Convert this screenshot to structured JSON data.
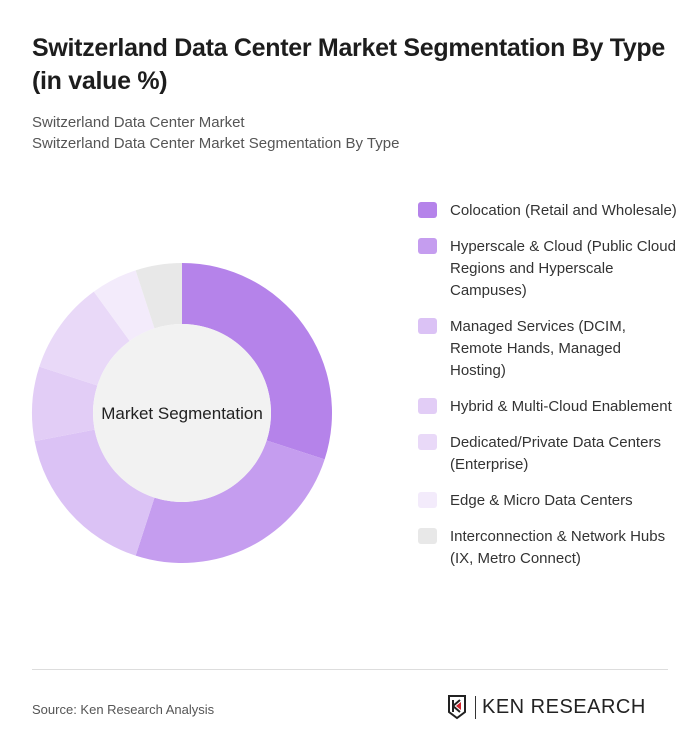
{
  "title": "Switzerland Data Center Market Segmentation By Type (in value %)",
  "subtitle1": "Switzerland Data Center Market",
  "subtitle2": "Switzerland Data Center Market Segmentation By Type",
  "source": "Source: Ken Research Analysis",
  "logo_text": "KEN RESEARCH",
  "chart_data": {
    "type": "pie",
    "variant": "donut",
    "center_label": "Market Segmentation",
    "legend_position": "right",
    "unit": "%",
    "categories": [
      "Colocation (Retail and Wholesale)",
      "Hyperscale & Cloud (Public Cloud Regions and Hyperscale Campuses)",
      "Managed Services (DCIM, Remote Hands, Managed Hosting)",
      "Hybrid & Multi-Cloud Enablement",
      "Dedicated/Private Data Centers (Enterprise)",
      "Edge & Micro Data Centers",
      "Interconnection & Network Hubs (IX, Metro Connect)"
    ],
    "values": [
      30,
      25,
      17,
      8,
      10,
      5,
      5
    ],
    "colors": [
      "#b583ea",
      "#c59def",
      "#dbc2f5",
      "#e2cdf6",
      "#e9d9f8",
      "#f3ebfb",
      "#e8e8e8"
    ]
  }
}
